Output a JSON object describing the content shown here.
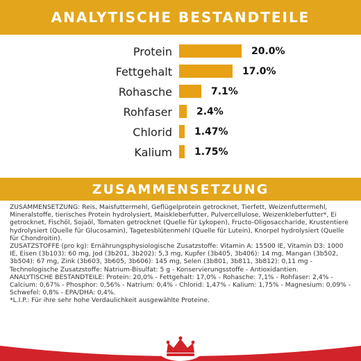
{
  "headings": {
    "analysis": "ANALYTISCHE BESTANDTEILE",
    "composition": "ZUSAMMENSETZUNG"
  },
  "analysis_items": [
    {
      "label": "Protein",
      "value_text": "20.0%",
      "value": 20.0
    },
    {
      "label": "Fettgehalt",
      "value_text": "17.0%",
      "value": 17.0
    },
    {
      "label": "Rohasche",
      "value_text": "7.1%",
      "value": 7.1
    },
    {
      "label": "Rohfaser",
      "value_text": "2.4%",
      "value": 2.4
    },
    {
      "label": "Chlorid",
      "value_text": "1.47%",
      "value": 1.47
    },
    {
      "label": "Kalium",
      "value_text": "1.75%",
      "value": 1.75
    }
  ],
  "colors": {
    "brand_yellow": "#e3a51b",
    "bar": "#e8a014",
    "logo_red": "#d2232a"
  },
  "composition_paragraphs": [
    "ZUSAMMENSETZUNG: Reis, Maisfuttermehl, Geflügelprotein getrocknet, Tierfett, Weizenfuttermehl, Mineralstoffe, tierisches Protein hydrolysiert, Maiskleberfutter, Pulvercellulose, Weizenkleberfutter*, Ei getrocknet, Fischöl, Sojaöl, Tomaten getrocknet (Quelle für Lykopen), Fructo-Oligosaccharide, Krustentiere hydrolysiert (Quelle für Glucosamin), Tagetesblütenmehl (Quelle für Lutein), Knorpel hydrolysiert (Quelle für Chondroitin).",
    "ZUSATZSTOFFE (pro kg): Ernährungsphysiologische Zusatzstoffe: Vitamin A: 15500 IE, Vitamin D3: 1000 IE, Eisen (3b103): 60 mg, Jod (3b201, 3b202): 5,3 mg, Kupfer (3b405, 3b406): 14 mg, Mangan (3b502, 3b504): 67 mg, Zink (3b603, 3b605, 3b606): 145 mg, Selen (3b801, 3b811, 3b812): 0,11 mg - Technologische Zusatzstoffe: Natrium-Bisulfat: 5 g - Konservierungsstoffe - Antioxidantien.",
    "ANALYTISCHE BESTANDTEILE: Protein: 20,0% - Fettgehalt: 17,0% - Rohasche: 7,1% - Rohfaser: 2,4% - Calcium: 0,67% - Phosphor: 0,56% - Natrium: 0,4% - Chlorid: 1,47% - Kalium: 1,75% - Magnesium: 0,09% - Schwefel: 0,8% - EPA/DHA: 0,4%.",
    "*L.I.P.: Für ihre sehr hohe Verdaulichkeit ausgewählte Proteine."
  ]
}
